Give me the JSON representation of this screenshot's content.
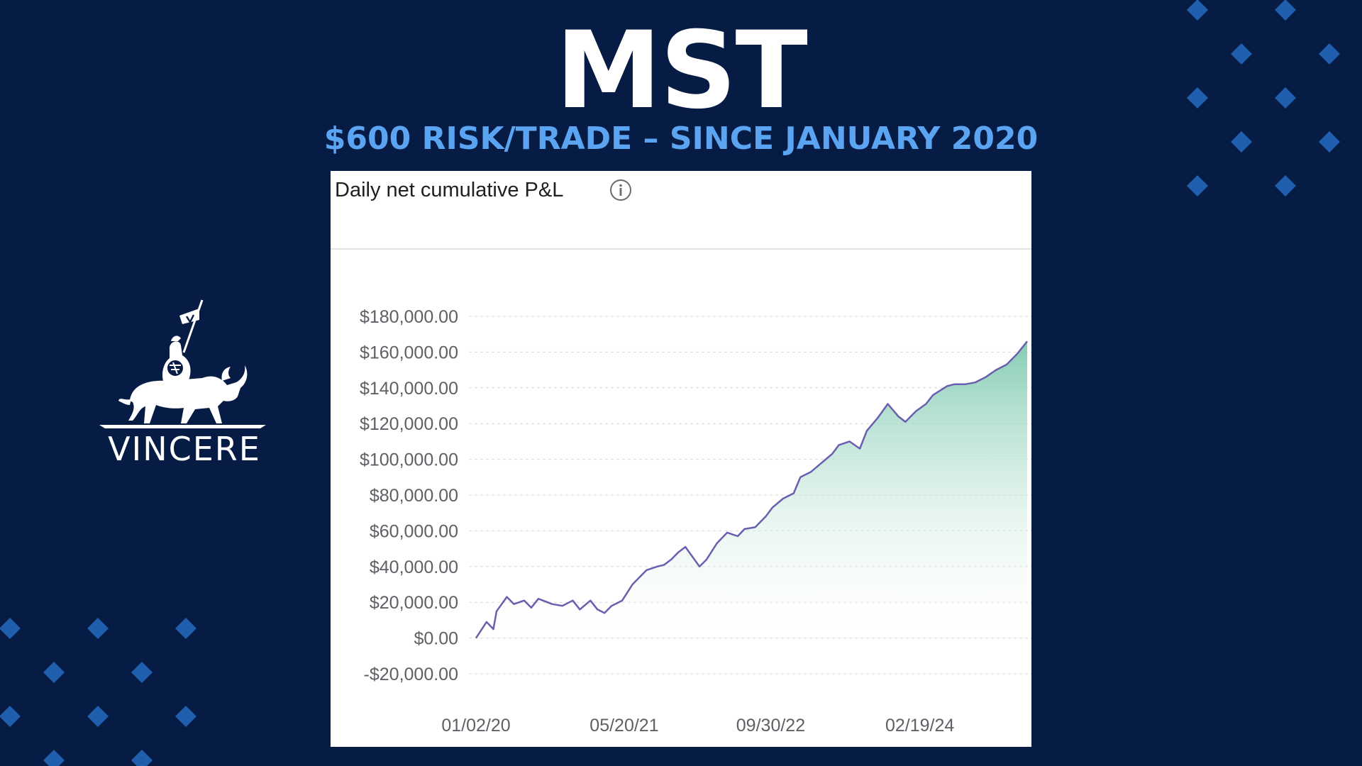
{
  "colors": {
    "background": "#061c45",
    "accent": "#5aa4f2",
    "diamond": "#1f5fae",
    "line": "#6a5fae",
    "area_top": "#7fcab0",
    "area_bottom": "#ffffff",
    "grid": "#d9d9d9"
  },
  "header": {
    "title": "MST",
    "subtitle": "$600 RISK/TRADE – SINCE JANUARY 2020"
  },
  "logo": {
    "icon": "knight-on-bull-icon",
    "text": "VINCERE"
  },
  "panel": {
    "title": "Daily net cumulative P&L",
    "info_icon": "info-icon"
  },
  "chart_data": {
    "type": "area",
    "title": "Daily net cumulative P&L",
    "xlabel": "",
    "ylabel": "",
    "ylim": [
      -20000,
      180000
    ],
    "y_ticks": [
      180000,
      160000,
      140000,
      120000,
      100000,
      80000,
      60000,
      40000,
      20000,
      0,
      -20000
    ],
    "y_tick_labels": [
      "$180,000.00",
      "$160,000.00",
      "$140,000.00",
      "$120,000.00",
      "$100,000.00",
      "$80,000.00",
      "$60,000.00",
      "$40,000.00",
      "$20,000.00",
      "$0.00",
      "-$20,000.00"
    ],
    "x_tick_labels": [
      "01/02/20",
      "05/20/21",
      "09/30/22",
      "02/19/24"
    ],
    "x_tick_dates": [
      "2020-01-02",
      "2021-05-20",
      "2022-09-30",
      "2024-02-19"
    ],
    "xlim": [
      "2020-01-02",
      "2025-02-18"
    ],
    "grid": true,
    "series": [
      {
        "x": [
          "2020-01-02",
          "2020-02-07",
          "2020-03-01",
          "2020-03-12",
          "2020-04-16",
          "2020-05-10",
          "2020-06-14",
          "2020-07-08",
          "2020-08-01",
          "2020-09-17",
          "2020-10-22",
          "2020-11-26",
          "2020-12-20",
          "2021-01-25",
          "2021-02-18",
          "2021-03-14",
          "2021-04-07",
          "2021-05-13",
          "2021-06-17",
          "2021-07-11",
          "2021-08-04",
          "2021-09-09",
          "2021-10-03",
          "2021-10-27",
          "2021-11-20",
          "2021-12-14",
          "2022-01-31",
          "2022-02-24",
          "2022-03-31",
          "2022-05-05",
          "2022-06-10",
          "2022-07-03",
          "2022-08-08",
          "2022-09-13",
          "2022-10-06",
          "2022-11-11",
          "2022-12-17",
          "2023-01-09",
          "2023-02-14",
          "2023-03-22",
          "2023-04-27",
          "2023-05-20",
          "2023-06-25",
          "2023-07-30",
          "2023-08-23",
          "2023-09-28",
          "2023-11-02",
          "2023-12-08",
          "2024-01-01",
          "2024-02-06",
          "2024-03-11",
          "2024-04-04",
          "2024-05-22",
          "2024-06-15",
          "2024-07-21",
          "2024-08-25",
          "2024-09-30",
          "2024-11-04",
          "2024-12-10",
          "2025-01-15",
          "2025-02-18"
        ],
        "y": [
          0,
          9000,
          5000,
          15000,
          23000,
          19000,
          21000,
          17000,
          22000,
          19000,
          18000,
          21000,
          16000,
          21000,
          16000,
          14000,
          18000,
          21000,
          30000,
          34000,
          38000,
          40000,
          41000,
          44000,
          48000,
          51000,
          40000,
          44000,
          53000,
          59000,
          57000,
          61000,
          62000,
          68000,
          73000,
          78000,
          81000,
          90000,
          93000,
          98000,
          103000,
          108000,
          110000,
          106000,
          116000,
          123000,
          131000,
          124000,
          121000,
          127000,
          131000,
          136000,
          141000,
          142000,
          142000,
          143000,
          146000,
          150000,
          153000,
          159000,
          166000
        ]
      }
    ]
  }
}
